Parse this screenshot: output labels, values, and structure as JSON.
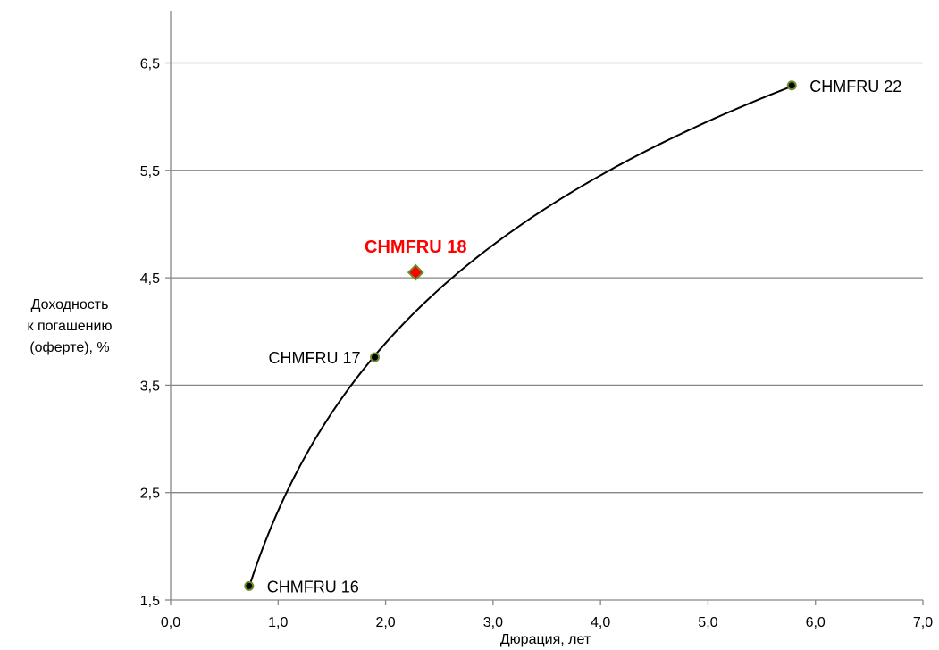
{
  "chart_data": {
    "type": "scatter",
    "xlabel": "Дюрация, лет",
    "ylabel_lines": [
      "Доходность",
      "к погашению",
      "(оферте), %"
    ],
    "xlim": [
      0,
      7
    ],
    "ylim": [
      1.5,
      7
    ],
    "x_ticks": [
      "0,0",
      "1,0",
      "2,0",
      "3,0",
      "4,0",
      "5,0",
      "6,0",
      "7,0"
    ],
    "y_ticks": [
      "1,5",
      "2,5",
      "3,5",
      "4,5",
      "5,5",
      "6,5"
    ],
    "grid": "horizontal",
    "points": [
      {
        "label": "CHMFRU 16",
        "x": 0.73,
        "y": 1.63,
        "marker": "circle",
        "label_side": "right"
      },
      {
        "label": "CHMFRU 17",
        "x": 1.9,
        "y": 3.76,
        "marker": "circle",
        "label_side": "left"
      },
      {
        "label": "CHMFRU 22",
        "x": 5.78,
        "y": 6.29,
        "marker": "circle",
        "label_side": "right"
      },
      {
        "label": "CHMFRU 18",
        "x": 2.28,
        "y": 4.55,
        "marker": "diamond",
        "label_side": "above",
        "highlight": true
      }
    ],
    "trendline": {
      "type": "logarithmic",
      "from_x": 0.73,
      "to_x": 5.78
    },
    "colors": {
      "highlight": "#ff0000",
      "marker_edge": "#6b8e23",
      "point_fill": "#000000",
      "grid": "#868686",
      "trend": "#000000"
    }
  }
}
